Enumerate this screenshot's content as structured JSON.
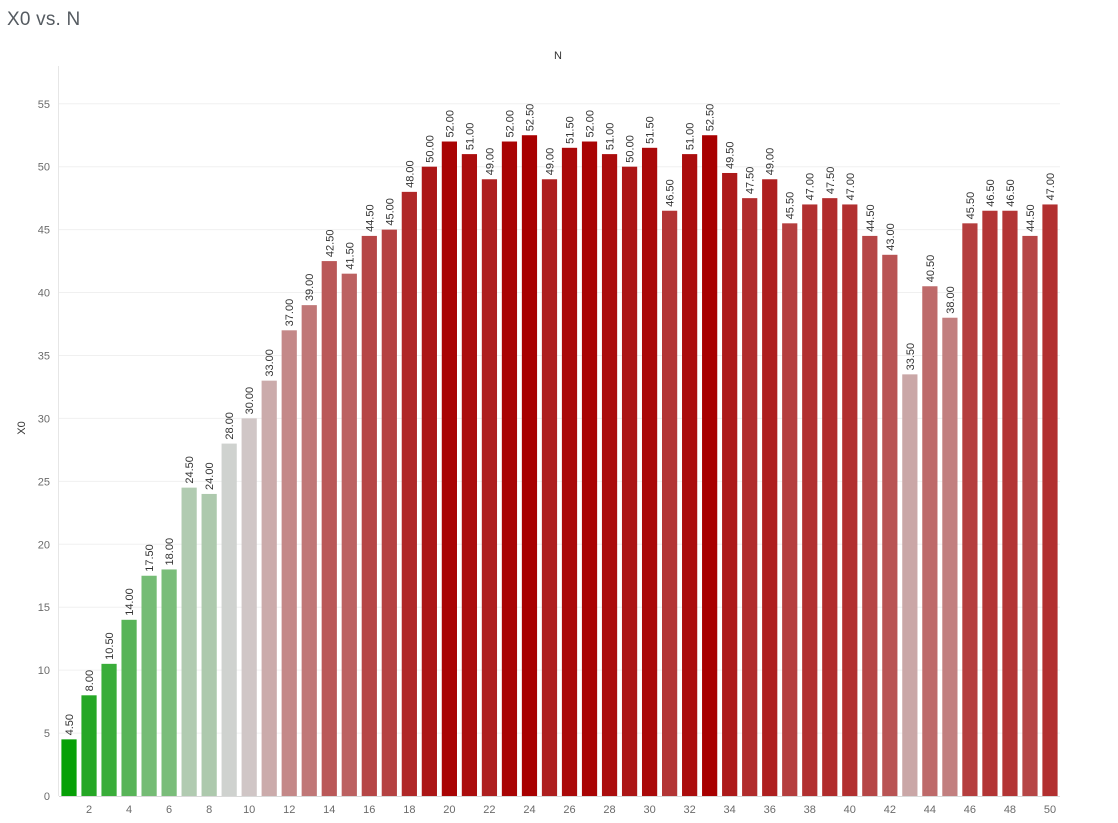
{
  "title": "X0 vs. N",
  "chart_data": {
    "type": "bar",
    "title": "X0 vs. N",
    "xlabel": "N",
    "ylabel": "X0",
    "x": [
      1,
      2,
      3,
      4,
      5,
      6,
      7,
      8,
      9,
      10,
      11,
      12,
      13,
      14,
      15,
      16,
      17,
      18,
      19,
      20,
      21,
      22,
      23,
      24,
      25,
      26,
      27,
      28,
      29,
      30,
      31,
      32,
      33,
      34,
      35,
      36,
      37,
      38,
      39,
      40,
      41,
      42,
      43,
      44,
      45,
      46,
      47,
      48,
      49,
      50
    ],
    "x_tick_labels": [
      "2",
      "4",
      "6",
      "8",
      "10",
      "12",
      "14",
      "16",
      "18",
      "20",
      "22",
      "24",
      "26",
      "28",
      "30",
      "32",
      "34",
      "36",
      "38",
      "40",
      "42",
      "44",
      "46",
      "48",
      "50"
    ],
    "values": [
      4.5,
      8,
      10.5,
      14,
      17.5,
      18,
      24.5,
      24,
      28,
      30,
      33,
      37,
      39,
      42.5,
      41.5,
      44.5,
      45,
      48,
      50,
      52,
      51,
      49,
      52,
      52.5,
      49,
      51.5,
      52,
      51,
      50,
      51.5,
      46.5,
      51,
      52.5,
      49.5,
      47.5,
      49,
      45.5,
      47,
      47.5,
      47,
      44.5,
      43,
      33.5,
      40.5,
      38,
      45.5,
      46.5,
      46.5,
      44.5,
      47
    ],
    "data_labels": [
      "4.50",
      "8.00",
      "10.50",
      "14.00",
      "17.50",
      "18.00",
      "24.50",
      "24.00",
      "28.00",
      "30.00",
      "33.00",
      "37.00",
      "39.00",
      "42.50",
      "41.50",
      "44.50",
      "45.00",
      "48.00",
      "50.00",
      "52.00",
      "51.00",
      "49.00",
      "52.00",
      "52.50",
      "49.00",
      "51.50",
      "52.00",
      "51.00",
      "50.00",
      "51.50",
      "46.50",
      "51.00",
      "52.50",
      "49.50",
      "47.50",
      "49.00",
      "45.50",
      "47.00",
      "47.50",
      "47.00",
      "44.50",
      "43.00",
      "33.50",
      "40.50",
      "38.00",
      "45.50",
      "46.50",
      "46.50",
      "44.50",
      "47.00"
    ],
    "y_ticks": [
      "0",
      "5",
      "10",
      "15",
      "20",
      "25",
      "30",
      "35",
      "40",
      "45",
      "50",
      "55"
    ],
    "ylim": [
      0,
      58
    ],
    "grid": true,
    "color_scale": {
      "low": "#07a007",
      "mid": "#d3d3d3",
      "high": "#a80000",
      "low_value": 4.5,
      "mid_value": 28.5,
      "high_value": 52.5
    }
  }
}
